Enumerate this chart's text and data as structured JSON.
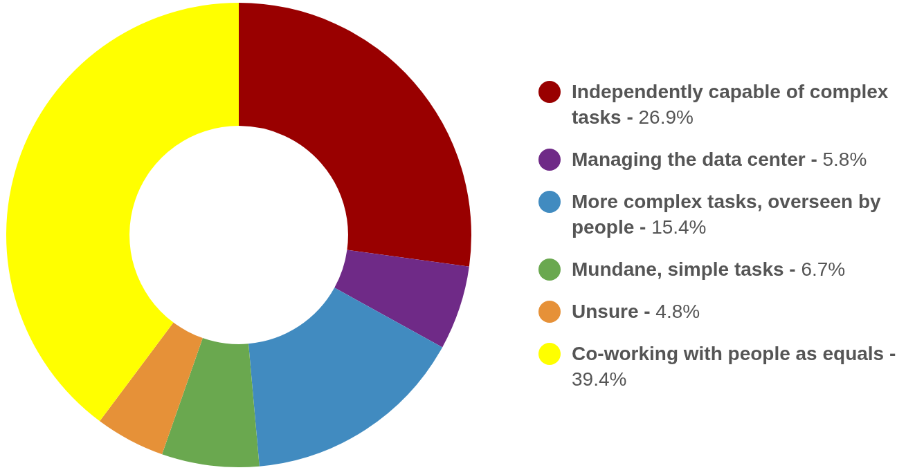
{
  "chart_data": {
    "type": "donut",
    "categories": [
      "Independently capable of complex tasks - 26.9%",
      "Managing the data center - 5.8%",
      "More complex tasks, overseen by people - 15.4%",
      "Mundane, simple tasks - 6.7%",
      "Unsure - 4.8%",
      "Co-working with people as equals - 39.4%"
    ],
    "values": [
      26.9,
      5.8,
      15.4,
      6.7,
      4.8,
      39.4
    ],
    "colors": [
      "#990000",
      "#6f2a87",
      "#418bc0",
      "#6aa84f",
      "#e69138",
      "#ffff00"
    ],
    "legend": "right"
  }
}
